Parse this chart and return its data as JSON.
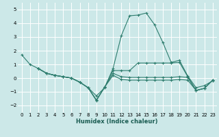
{
  "xlabel": "Humidex (Indice chaleur)",
  "bg_color": "#cce8e8",
  "grid_color": "#ffffff",
  "line_color": "#2e7d6e",
  "xlim": [
    -0.5,
    23.5
  ],
  "ylim": [
    -2.5,
    5.5
  ],
  "xticks": [
    0,
    1,
    2,
    3,
    4,
    5,
    6,
    7,
    8,
    9,
    10,
    11,
    12,
    13,
    14,
    15,
    16,
    17,
    18,
    19,
    20,
    21,
    22,
    23
  ],
  "yticks": [
    -2,
    -1,
    0,
    1,
    2,
    3,
    4,
    5
  ],
  "lines": [
    {
      "x": [
        0,
        1,
        2,
        3,
        4,
        5,
        6,
        7,
        8,
        9,
        10,
        11,
        12,
        13,
        14,
        15,
        16,
        17,
        18,
        19,
        20,
        21,
        22,
        23
      ],
      "y": [
        1.7,
        1.0,
        0.7,
        0.35,
        0.2,
        0.1,
        0.0,
        -0.3,
        -0.7,
        -1.3,
        -0.7,
        0.7,
        3.1,
        4.55,
        4.6,
        4.75,
        3.9,
        2.6,
        1.15,
        1.3,
        0.15,
        -0.7,
        -0.55,
        -0.2
      ]
    },
    {
      "x": [
        2,
        3,
        4,
        5,
        6,
        7,
        8,
        9,
        10,
        11,
        12,
        13,
        14,
        15,
        16,
        17,
        18,
        19,
        20,
        21,
        22,
        23
      ],
      "y": [
        0.7,
        0.35,
        0.2,
        0.1,
        0.0,
        -0.3,
        -0.7,
        -1.6,
        -0.65,
        0.55,
        0.55,
        0.55,
        1.1,
        1.1,
        1.1,
        1.1,
        1.1,
        1.15,
        0.1,
        -0.9,
        -0.75,
        -0.15
      ]
    },
    {
      "x": [
        2,
        3,
        4,
        5,
        6,
        7,
        8,
        9,
        10,
        11,
        12,
        13,
        14,
        15,
        16,
        17,
        18,
        19,
        20,
        21,
        22,
        23
      ],
      "y": [
        0.7,
        0.35,
        0.2,
        0.1,
        0.0,
        -0.3,
        -0.7,
        -1.6,
        -0.65,
        0.35,
        0.1,
        0.05,
        0.05,
        0.05,
        0.05,
        0.05,
        0.05,
        0.1,
        0.05,
        -0.9,
        -0.75,
        -0.15
      ]
    },
    {
      "x": [
        2,
        3,
        4,
        5,
        6,
        7,
        8,
        9,
        10,
        11,
        12,
        13,
        14,
        15,
        16,
        17,
        18,
        19,
        20,
        21,
        22,
        23
      ],
      "y": [
        0.7,
        0.35,
        0.2,
        0.1,
        0.0,
        -0.3,
        -0.7,
        -1.65,
        -0.65,
        0.2,
        -0.1,
        -0.15,
        -0.15,
        -0.15,
        -0.15,
        -0.15,
        -0.15,
        -0.1,
        -0.15,
        -0.9,
        -0.75,
        -0.15
      ]
    }
  ]
}
